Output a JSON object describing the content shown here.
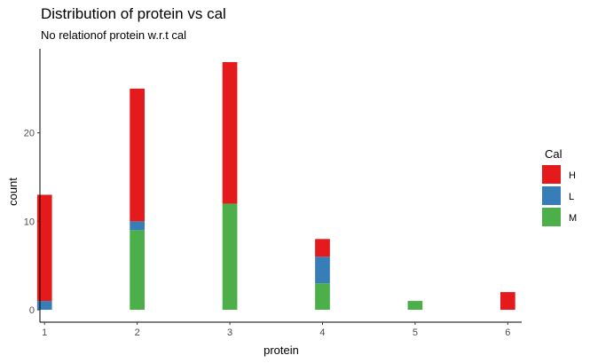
{
  "chart_data": {
    "type": "bar",
    "stacked": true,
    "title": "Distribution of protein vs cal",
    "subtitle": "No relationof protein w.r.t cal",
    "xlabel": "protein",
    "ylabel": "count",
    "x": [
      1,
      2,
      3,
      4,
      5,
      6
    ],
    "xlim": [
      0.95,
      6.15
    ],
    "ylim": [
      -1.4,
      29.5
    ],
    "xticks": [
      1,
      2,
      3,
      4,
      5,
      6
    ],
    "yticks": [
      0,
      10,
      20
    ],
    "grid": false,
    "legend": {
      "title": "Cal",
      "placement": "right"
    },
    "series": [
      {
        "name": "H",
        "color": "#E41A1C",
        "values": [
          12,
          15,
          16,
          2,
          0,
          2
        ]
      },
      {
        "name": "L",
        "color": "#377EB8",
        "values": [
          1,
          1,
          0,
          3,
          0,
          0
        ]
      },
      {
        "name": "M",
        "color": "#4DAF4A",
        "values": [
          0,
          9,
          12,
          3,
          1,
          0
        ]
      }
    ]
  }
}
